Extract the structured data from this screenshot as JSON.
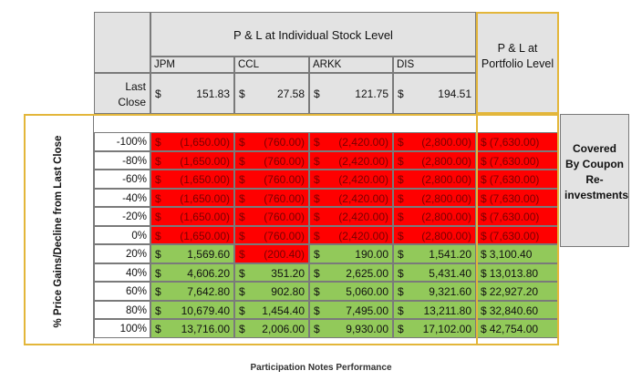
{
  "header": {
    "stock_level_title": "P & L at Individual Stock Level",
    "portfolio_title": "P & L at Portfolio Level",
    "last_close_label": "Last Close"
  },
  "tickers": [
    "JPM",
    "CCL",
    "ARKK",
    "DIS"
  ],
  "last_close": [
    "151.83",
    "27.58",
    "121.75",
    "194.51"
  ],
  "currency_symbol": "$",
  "row_axis_label": "% Price Gains/Decline from Last Close",
  "rows": [
    {
      "change": "-100%",
      "values": [
        "(1,650.00)",
        "(760.00)",
        "(2,420.00)",
        "(2,800.00)"
      ],
      "portfolio": "(7,630.00)"
    },
    {
      "change": "-80%",
      "values": [
        "(1,650.00)",
        "(760.00)",
        "(2,420.00)",
        "(2,800.00)"
      ],
      "portfolio": "(7,630.00)"
    },
    {
      "change": "-60%",
      "values": [
        "(1,650.00)",
        "(760.00)",
        "(2,420.00)",
        "(2,800.00)"
      ],
      "portfolio": "(7,630.00)"
    },
    {
      "change": "-40%",
      "values": [
        "(1,650.00)",
        "(760.00)",
        "(2,420.00)",
        "(2,800.00)"
      ],
      "portfolio": "(7,630.00)"
    },
    {
      "change": "-20%",
      "values": [
        "(1,650.00)",
        "(760.00)",
        "(2,420.00)",
        "(2,800.00)"
      ],
      "portfolio": "(7,630.00)"
    },
    {
      "change": "0%",
      "values": [
        "(1,650.00)",
        "(760.00)",
        "(2,420.00)",
        "(2,800.00)"
      ],
      "portfolio": "(7,630.00)"
    },
    {
      "change": "20%",
      "values": [
        "1,569.60",
        "(200.40)",
        "190.00",
        "1,541.20"
      ],
      "portfolio": "3,100.40"
    },
    {
      "change": "40%",
      "values": [
        "4,606.20",
        "351.20",
        "2,625.00",
        "5,431.40"
      ],
      "portfolio": "13,013.80"
    },
    {
      "change": "60%",
      "values": [
        "7,642.80",
        "902.80",
        "5,060.00",
        "9,321.60"
      ],
      "portfolio": "22,927.20"
    },
    {
      "change": "80%",
      "values": [
        "10,679.40",
        "1,454.40",
        "7,495.00",
        "13,211.80"
      ],
      "portfolio": "32,840.60"
    },
    {
      "change": "100%",
      "values": [
        "13,716.00",
        "2,006.00",
        "9,930.00",
        "17,102.00"
      ],
      "portfolio": "42,754.00"
    }
  ],
  "side_note": "Covered By Coupon Re-investments",
  "caption": "Participation Notes Performance",
  "colors": {
    "loss": "#ff0000",
    "gain": "#92c95a",
    "header": "#e3e3e3",
    "outline": "#e3b63a"
  }
}
